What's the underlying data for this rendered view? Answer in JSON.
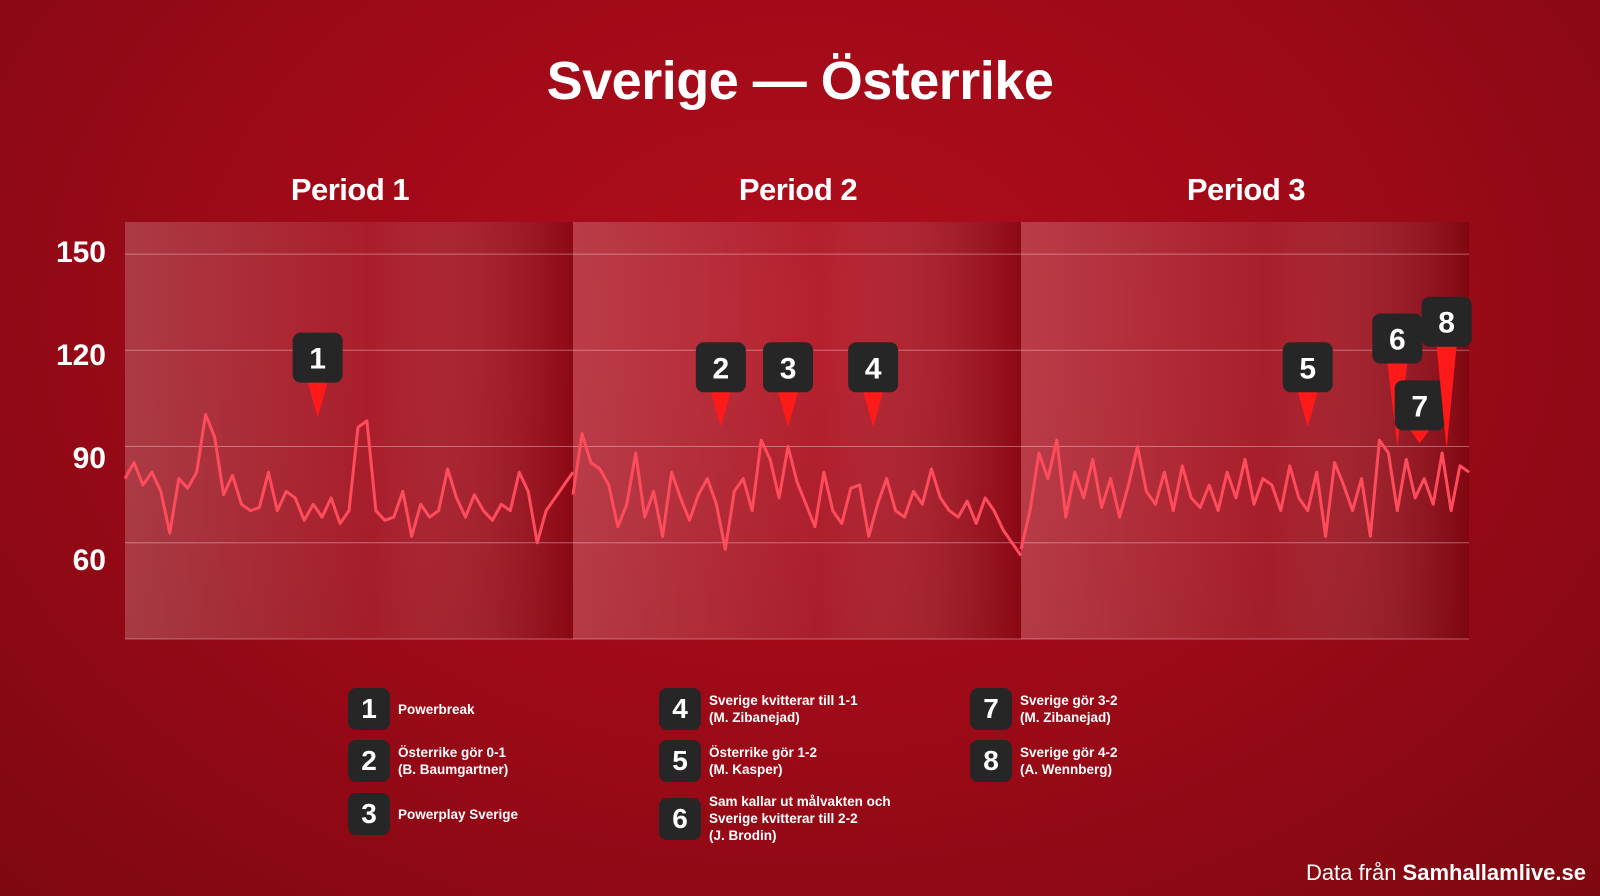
{
  "title": "Sverige  —  Österrike",
  "source": {
    "prefix": "Data från ",
    "site": "Samhallamlive.se"
  },
  "chart_data": {
    "type": "line",
    "title": "Sverige  —  Österrike",
    "periods": [
      "Period 1",
      "Period 2",
      "Period 3"
    ],
    "yticks": [
      "150",
      "120",
      "90",
      "60"
    ],
    "ytick_values": [
      150,
      120,
      90,
      60
    ],
    "ylim": [
      30,
      160
    ],
    "grid": true,
    "line_color": "#ff4c5c",
    "badge_color": "#262626",
    "marker_color": "#ff1a1a",
    "series": [
      {
        "period": "Period 1",
        "x": [
          0,
          0.02,
          0.04,
          0.06,
          0.08,
          0.1,
          0.12,
          0.14,
          0.16,
          0.18,
          0.2,
          0.22,
          0.24,
          0.26,
          0.28,
          0.3,
          0.32,
          0.34,
          0.36,
          0.38,
          0.4,
          0.42,
          0.44,
          0.46,
          0.48,
          0.5,
          0.52,
          0.54,
          0.56,
          0.58,
          0.6,
          0.62,
          0.64,
          0.66,
          0.68,
          0.7,
          0.72,
          0.74,
          0.76,
          0.78,
          0.8,
          0.82,
          0.84,
          0.86,
          0.88,
          0.9,
          0.92,
          0.94,
          0.96,
          0.98,
          1.0
        ],
        "values": [
          80,
          85,
          78,
          82,
          76,
          63,
          80,
          77,
          82,
          100,
          93,
          75,
          81,
          72,
          70,
          71,
          82,
          70,
          76,
          74,
          67,
          72,
          68,
          74,
          66,
          70,
          96,
          98,
          70,
          67,
          68,
          76,
          62,
          72,
          68,
          70,
          83,
          74,
          68,
          75,
          70,
          67,
          72,
          70,
          82,
          76,
          60,
          70,
          74,
          78,
          82
        ]
      },
      {
        "period": "Period 2",
        "x": [
          0,
          0.02,
          0.04,
          0.06,
          0.08,
          0.1,
          0.12,
          0.14,
          0.16,
          0.18,
          0.2,
          0.22,
          0.24,
          0.26,
          0.28,
          0.3,
          0.32,
          0.34,
          0.36,
          0.38,
          0.4,
          0.42,
          0.44,
          0.46,
          0.48,
          0.5,
          0.52,
          0.54,
          0.56,
          0.58,
          0.6,
          0.62,
          0.64,
          0.66,
          0.68,
          0.7,
          0.72,
          0.74,
          0.76,
          0.78,
          0.8,
          0.82,
          0.84,
          0.86,
          0.88,
          0.9,
          0.92,
          0.94,
          0.96,
          0.98,
          1.0
        ],
        "values": [
          75,
          94,
          85,
          83,
          78,
          65,
          72,
          88,
          68,
          76,
          62,
          82,
          74,
          67,
          75,
          80,
          72,
          58,
          76,
          80,
          70,
          92,
          86,
          74,
          90,
          79,
          72,
          65,
          82,
          70,
          66,
          77,
          78,
          62,
          72,
          80,
          70,
          68,
          76,
          72,
          83,
          74,
          70,
          68,
          73,
          66,
          74,
          70,
          64,
          60,
          56
        ]
      },
      {
        "period": "Period 3",
        "x": [
          0,
          0.02,
          0.04,
          0.06,
          0.08,
          0.1,
          0.12,
          0.14,
          0.16,
          0.18,
          0.2,
          0.22,
          0.24,
          0.26,
          0.28,
          0.3,
          0.32,
          0.34,
          0.36,
          0.38,
          0.4,
          0.42,
          0.44,
          0.46,
          0.48,
          0.5,
          0.52,
          0.54,
          0.56,
          0.58,
          0.6,
          0.62,
          0.64,
          0.66,
          0.68,
          0.7,
          0.72,
          0.74,
          0.76,
          0.78,
          0.8,
          0.82,
          0.84,
          0.86,
          0.88,
          0.9,
          0.92,
          0.94,
          0.96,
          0.98,
          1.0
        ],
        "values": [
          58,
          70,
          88,
          80,
          92,
          68,
          82,
          74,
          86,
          71,
          80,
          68,
          78,
          90,
          76,
          72,
          82,
          70,
          84,
          74,
          71,
          78,
          70,
          82,
          74,
          86,
          72,
          80,
          78,
          70,
          84,
          74,
          70,
          82,
          62,
          85,
          78,
          70,
          80,
          62,
          92,
          88,
          70,
          86,
          74,
          80,
          72,
          88,
          70,
          84,
          82
        ]
      }
    ],
    "markers": [
      {
        "label": "1",
        "period": "Period 1",
        "x": 0.43,
        "value": 99
      },
      {
        "label": "2",
        "period": "Period 2",
        "x": 0.33,
        "value": 96
      },
      {
        "label": "3",
        "period": "Period 2",
        "x": 0.48,
        "value": 96
      },
      {
        "label": "4",
        "period": "Period 2",
        "x": 0.67,
        "value": 96
      },
      {
        "label": "5",
        "period": "Period 3",
        "x": 0.64,
        "value": 96
      },
      {
        "label": "6",
        "period": "Period 3",
        "x": 0.84,
        "value": 90
      },
      {
        "label": "7",
        "period": "Period 3",
        "x": 0.89,
        "value": 91
      },
      {
        "label": "8",
        "period": "Period 3",
        "x": 0.95,
        "value": 89
      }
    ]
  },
  "legend": [
    {
      "num": "1",
      "text": "Powerbreak"
    },
    {
      "num": "2",
      "text": "Österrike gör 0-1\n(B. Baumgartner)"
    },
    {
      "num": "3",
      "text": "Powerplay Sverige"
    },
    {
      "num": "4",
      "text": "Sverige kvitterar till 1-1\n(M. Zibanejad)"
    },
    {
      "num": "5",
      "text": "Österrike gör 1-2\n(M. Kasper)"
    },
    {
      "num": "6",
      "text": "Sam kallar ut målvakten och\nSverige kvitterar till 2-2\n(J. Brodin)"
    },
    {
      "num": "7",
      "text": "Sverige gör 3-2\n(M. Zibanejad)"
    },
    {
      "num": "8",
      "text": "Sverige gör 4-2\n(A. Wennberg)"
    }
  ]
}
